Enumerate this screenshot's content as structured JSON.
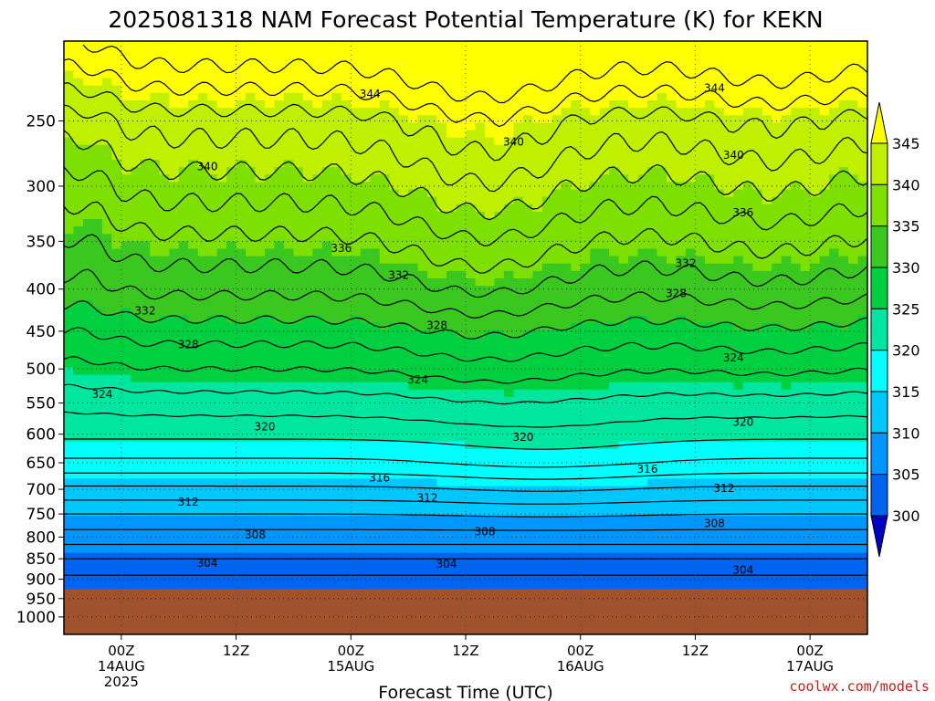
{
  "chart_data": {
    "type": "heatmap",
    "title": "2025081318 NAM Forecast Potential Temperature (K) for KEKN",
    "xlabel": "Forecast Time (UTC)",
    "y_axis": {
      "quantity": "pressure (hPa)",
      "scale": "log",
      "inverted": true,
      "range": [
        200,
        1050
      ],
      "ticks": [
        250,
        300,
        350,
        400,
        450,
        500,
        550,
        600,
        650,
        700,
        750,
        800,
        850,
        900,
        950,
        1000
      ]
    },
    "x_axis": {
      "range": [
        "2025-08-13 18Z",
        "2025-08-17 06Z"
      ],
      "ticks": [
        {
          "hour": 6,
          "line1": "00Z",
          "line2": "14AUG",
          "line3": "2025"
        },
        {
          "hour": 18,
          "line1": "12Z",
          "line2": "",
          "line3": ""
        },
        {
          "hour": 30,
          "line1": "00Z",
          "line2": "15AUG",
          "line3": ""
        },
        {
          "hour": 42,
          "line1": "12Z",
          "line2": "",
          "line3": ""
        },
        {
          "hour": 54,
          "line1": "00Z",
          "line2": "16AUG",
          "line3": ""
        },
        {
          "hour": 66,
          "line1": "12Z",
          "line2": "",
          "line3": ""
        },
        {
          "hour": 78,
          "line1": "00Z",
          "line2": "17AUG",
          "line3": ""
        }
      ]
    },
    "grid": true,
    "surface_pressure_hpa": 925,
    "colorbar": {
      "placement": "right",
      "levels": [
        345,
        340,
        335,
        330,
        325,
        320,
        315,
        310,
        305,
        300
      ],
      "colors": [
        "#ffff00",
        "#c0f000",
        "#7ee000",
        "#3ac820",
        "#00d040",
        "#00e6a0",
        "#00ffff",
        "#00c8ff",
        "#0096ff",
        "#0064f0",
        "#0032d8",
        "#0000c0"
      ]
    },
    "series": [
      {
        "values": [
          [
            6,
            915
          ],
          [
            18,
            895
          ],
          [
            30,
            880
          ],
          [
            42,
            870
          ],
          [
            54,
            868
          ],
          [
            66,
            872
          ],
          [
            78,
            862
          ]
        ]
      }
    ],
    "contour_labels": [
      {
        "value": "344",
        "hour": 32,
        "p": 232
      },
      {
        "value": "344",
        "hour": 68,
        "p": 228
      },
      {
        "value": "340",
        "hour": 15,
        "p": 284
      },
      {
        "value": "340",
        "hour": 47,
        "p": 265
      },
      {
        "value": "340",
        "hour": 70,
        "p": 275
      },
      {
        "value": "336",
        "hour": 29,
        "p": 357
      },
      {
        "value": "336",
        "hour": 71,
        "p": 323
      },
      {
        "value": "332",
        "hour": 8.5,
        "p": 425
      },
      {
        "value": "332",
        "hour": 35,
        "p": 385
      },
      {
        "value": "332",
        "hour": 65,
        "p": 372
      },
      {
        "value": "328",
        "hour": 13,
        "p": 467
      },
      {
        "value": "328",
        "hour": 39,
        "p": 443
      },
      {
        "value": "328",
        "hour": 64,
        "p": 405
      },
      {
        "value": "324",
        "hour": 4,
        "p": 537
      },
      {
        "value": "324",
        "hour": 37,
        "p": 515
      },
      {
        "value": "324",
        "hour": 70,
        "p": 485
      },
      {
        "value": "320",
        "hour": 21,
        "p": 588
      },
      {
        "value": "320",
        "hour": 48,
        "p": 605
      },
      {
        "value": "320",
        "hour": 71,
        "p": 580
      },
      {
        "value": "316",
        "hour": 33,
        "p": 678
      },
      {
        "value": "316",
        "hour": 61,
        "p": 662
      },
      {
        "value": "312",
        "hour": 13,
        "p": 725
      },
      {
        "value": "312",
        "hour": 38,
        "p": 717
      },
      {
        "value": "312",
        "hour": 69,
        "p": 698
      },
      {
        "value": "308",
        "hour": 20,
        "p": 795
      },
      {
        "value": "308",
        "hour": 44,
        "p": 788
      },
      {
        "value": "308",
        "hour": 68,
        "p": 770
      },
      {
        "value": "304",
        "hour": 15,
        "p": 860
      },
      {
        "value": "304",
        "hour": 40,
        "p": 863
      },
      {
        "value": "304",
        "hour": 71,
        "p": 877
      }
    ]
  },
  "credit": "coolwx.com/models"
}
